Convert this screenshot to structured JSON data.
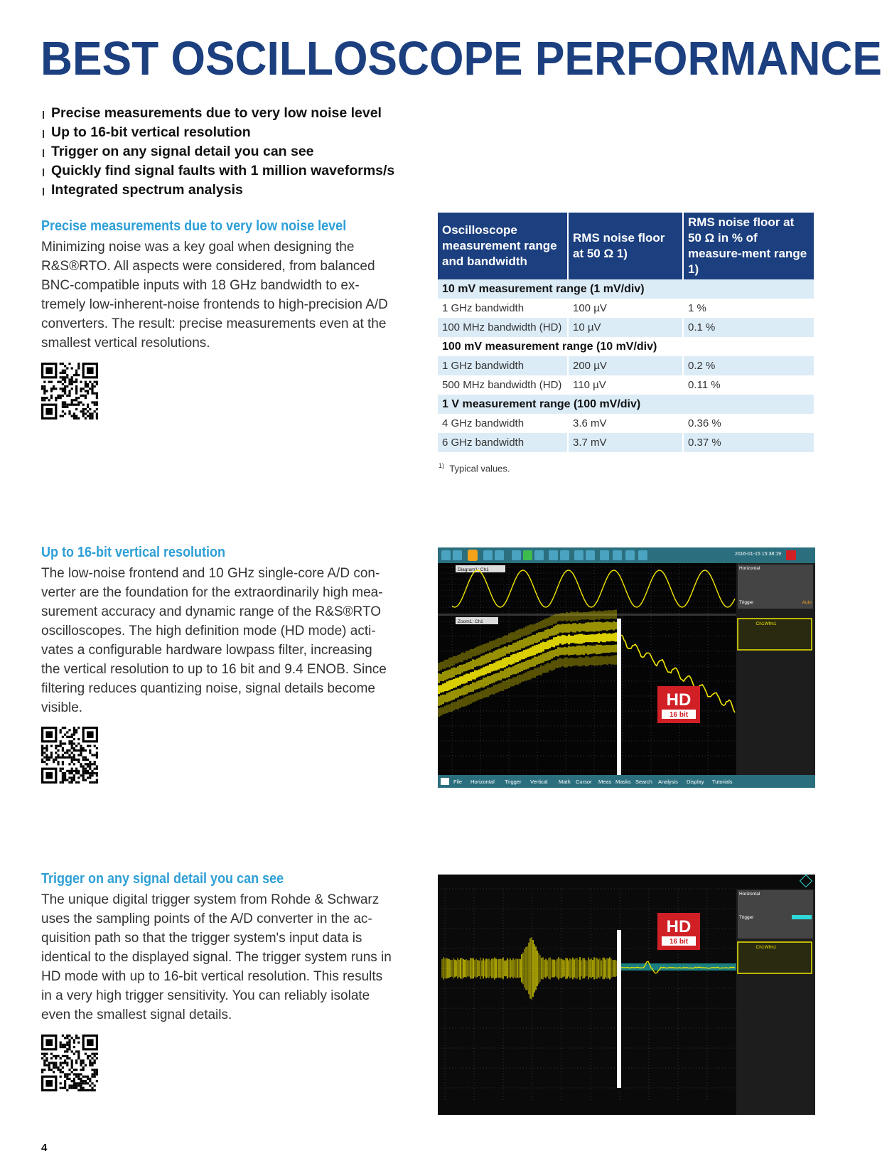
{
  "title": "BEST OSCILLOSCOPE PERFORMANCE",
  "bullets": [
    "Precise measurements due to very low noise level",
    "Up to 16-bit vertical resolution",
    "Trigger on any signal detail you can see",
    "Quickly find signal faults with 1 million waveforms/s",
    "Integrated spectrum analysis"
  ],
  "sections": [
    {
      "heading": "Precise measurements due to very low noise level",
      "body": "Minimizing noise was a key goal when designing the\nR&S®RTO. All aspects were considered, from balanced\nBNC-compatible inputs with 18 GHz bandwidth to ex-\ntremely low-inherent-noise frontends to high-precision A/D\nconverters. The result: precise measurements even at the\nsmallest vertical resolutions."
    },
    {
      "heading": "Up to 16-bit vertical resolution",
      "body": "The low-noise frontend and 10 GHz single-core A/D con-\nverter are the foundation for the extraordinarily high mea-\nsurement accuracy and dynamic range of the R&S®RTO\noscilloscopes. The high definition mode (HD mode) acti-\nvates a configurable hardware lowpass filter, increasing\nthe vertical resolution to up to 16 bit and 9.4 ENOB. Since\nfiltering reduces quantizing noise, signal details become\nvisible."
    },
    {
      "heading": "Trigger on any signal detail you can see",
      "body": "The unique digital trigger system from Rohde & Schwarz\nuses the sampling points of the A/D converter in the ac-\nquisition path so that the trigger system's input data is\nidentical to the displayed signal. The trigger system runs in\nHD mode with up to 16-bit vertical resolution. This results\nin a very high trigger sensitivity. You can reliably isolate\neven the smallest signal details."
    }
  ],
  "table": {
    "headers": [
      "Oscilloscope measurement range and bandwidth",
      "RMS noise floor at 50 Ω 1)",
      "RMS noise floor at 50 Ω in % of measure-ment range 1)"
    ],
    "groups": [
      {
        "label": "10 mV measurement range (1 mV/div)",
        "rows": [
          [
            "1 GHz bandwidth",
            "100 µV",
            "1 %"
          ],
          [
            "100 MHz bandwidth (HD)",
            "10 µV",
            "0.1 %"
          ]
        ]
      },
      {
        "label": "100 mV measurement range (10 mV/div)",
        "rows": [
          [
            "1 GHz bandwidth",
            "200 µV",
            "0.2 %"
          ],
          [
            "500 MHz bandwidth (HD)",
            "110 µV",
            "0.11 %"
          ]
        ]
      },
      {
        "label": "1 V measurement range (100 mV/div)",
        "rows": [
          [
            "4 GHz bandwidth",
            "3.6 mV",
            "0.36 %"
          ],
          [
            "6 GHz bandwidth",
            "3.7 mV",
            "0.37 %"
          ]
        ]
      }
    ],
    "footnote_mark": "1)",
    "footnote": "Typical values."
  },
  "screen1": {
    "datetime": "2016-01-15 15:38:19",
    "menu": [
      "File",
      "Horizontal",
      "Trigger",
      "Vertical",
      "Math",
      "Cursor",
      "Meas",
      "Masks",
      "Search",
      "Analysis",
      "Display",
      "Tutorials"
    ],
    "diagram_label": "Diagram1: Ch1",
    "zoom_label": "Zoom1: Ch1",
    "panel_horizontal": "Horizontal",
    "panel_trigger": "Trigger",
    "panel_auto": "Auto",
    "panel_ch": "Ch1Wfm1",
    "hd_badge": "HD",
    "hd_sub": "16 bit"
  },
  "screen2": {
    "panel_horizontal": "Horizontal",
    "panel_trigger": "Trigger",
    "panel_ch": "Ch1Wfm1",
    "hd_badge": "HD",
    "hd_sub": "16 bit"
  },
  "page_number": "4",
  "colors": {
    "title": "#1b3f7f",
    "heading": "#2d9fd6",
    "table_head": "#1b3f7f",
    "table_alt": "#dcecf7",
    "trace": "#f2e600",
    "hd_red": "#d01f25"
  }
}
